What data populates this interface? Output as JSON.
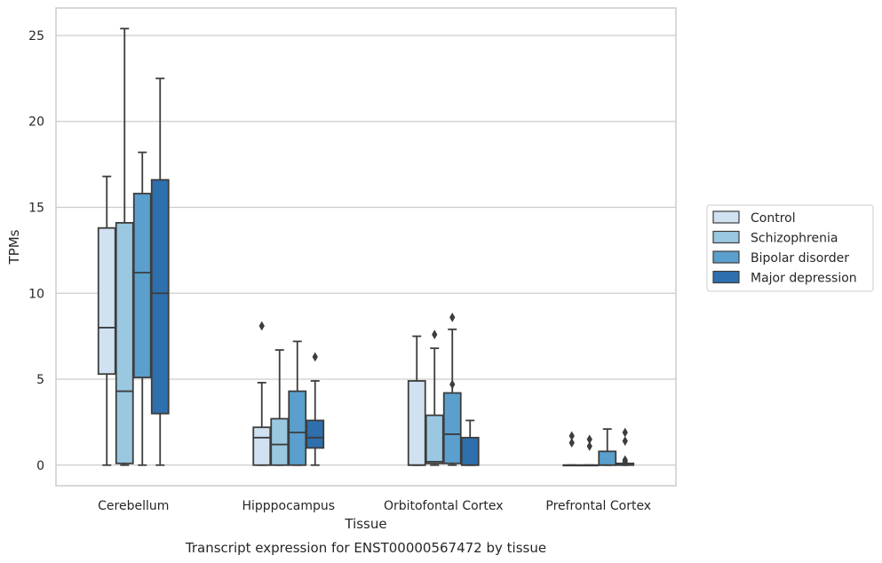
{
  "chart_data": {
    "type": "box",
    "caption": "Transcript expression for ENST00000567472 by tissue",
    "xlabel": "Tissue",
    "ylabel": "TPMs",
    "ylim": [
      -1.2,
      26.6
    ],
    "yticks": [
      0,
      5,
      10,
      15,
      20,
      25
    ],
    "grid": "horizontal",
    "legend_position": "right",
    "categories": [
      "Cerebellum",
      "Hipppocampus",
      "Orbitofontal Cortex",
      "Prefrontal Cortex"
    ],
    "series": [
      {
        "name": "Control",
        "color": "#d0e1f2",
        "boxes": [
          {
            "whislo": 0,
            "q1": 5.3,
            "med": 8.0,
            "q3": 13.8,
            "whishi": 16.8,
            "fliers": []
          },
          {
            "whislo": 0,
            "q1": 0,
            "med": 1.6,
            "q3": 2.2,
            "whishi": 4.8,
            "fliers": [
              8.1
            ]
          },
          {
            "whislo": 0,
            "q1": 0,
            "med": 0,
            "q3": 4.9,
            "whishi": 7.5,
            "fliers": []
          },
          {
            "whislo": 0,
            "q1": 0,
            "med": 0,
            "q3": 0,
            "whishi": 0,
            "fliers": [
              1.3,
              1.7
            ]
          }
        ]
      },
      {
        "name": "Schizophrenia",
        "color": "#9ac8e0",
        "boxes": [
          {
            "whislo": 0,
            "q1": 0.1,
            "med": 4.3,
            "q3": 14.1,
            "whishi": 25.4,
            "fliers": []
          },
          {
            "whislo": 0,
            "q1": 0,
            "med": 1.2,
            "q3": 2.7,
            "whishi": 6.7,
            "fliers": []
          },
          {
            "whislo": 0,
            "q1": 0.1,
            "med": 0.2,
            "q3": 2.9,
            "whishi": 6.8,
            "fliers": [
              7.6
            ]
          },
          {
            "whislo": 0,
            "q1": 0,
            "med": 0,
            "q3": 0,
            "whishi": 0,
            "fliers": [
              1.1,
              1.5
            ]
          }
        ]
      },
      {
        "name": "Bipolar disorder",
        "color": "#5a9fce",
        "boxes": [
          {
            "whislo": 0,
            "q1": 5.1,
            "med": 11.2,
            "q3": 15.8,
            "whishi": 18.2,
            "fliers": []
          },
          {
            "whislo": 0,
            "q1": 0,
            "med": 1.9,
            "q3": 4.3,
            "whishi": 7.2,
            "fliers": []
          },
          {
            "whislo": 0,
            "q1": 0.1,
            "med": 1.8,
            "q3": 4.2,
            "whishi": 7.9,
            "fliers": [
              4.7,
              8.6
            ]
          },
          {
            "whislo": 0,
            "q1": 0,
            "med": 0,
            "q3": 0.8,
            "whishi": 2.1,
            "fliers": []
          }
        ]
      },
      {
        "name": "Major depression",
        "color": "#2e6fad",
        "boxes": [
          {
            "whislo": 0,
            "q1": 3.0,
            "med": 10.0,
            "q3": 16.6,
            "whishi": 22.5,
            "fliers": []
          },
          {
            "whislo": 0,
            "q1": 1.0,
            "med": 1.6,
            "q3": 2.6,
            "whishi": 4.9,
            "fliers": [
              6.3
            ]
          },
          {
            "whislo": 0,
            "q1": 0,
            "med": 0,
            "q3": 1.6,
            "whishi": 2.6,
            "fliers": []
          },
          {
            "whislo": 0,
            "q1": 0,
            "med": 0.1,
            "q3": 0.1,
            "whishi": 0.1,
            "fliers": [
              0.2,
              0.3,
              1.4,
              1.9
            ]
          }
        ]
      }
    ]
  }
}
